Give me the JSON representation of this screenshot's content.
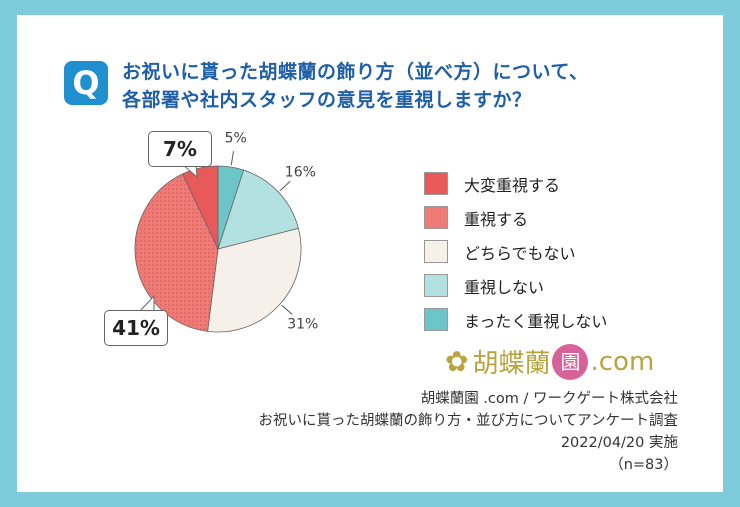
{
  "title": {
    "icon": "Q",
    "lines": [
      "お祝いに貰った胡蝶蘭の飾り方（並べ方）について、",
      "各部署や社内スタッフの意見を重視しますか？"
    ]
  },
  "chart_data": {
    "type": "pie",
    "categories": [
      "大変重視する",
      "重視する",
      "どちらでもない",
      "重視しない",
      "まったく重視しない"
    ],
    "values": [
      7,
      41,
      31,
      16,
      5
    ],
    "labels": [
      "7%",
      "41%",
      "31%",
      "16%",
      "5%"
    ],
    "colors": [
      "#e85a5a",
      "#ee7b76",
      "#f5f1ea",
      "#b3e0e0",
      "#6cc6c8"
    ],
    "legend": "right"
  },
  "logo": {
    "text": "胡蝶蘭",
    "badge": "園",
    "suffix": ".com"
  },
  "credit": [
    "胡蝶蘭園 .com / ワークゲート株式会社",
    "お祝いに貰った胡蝶蘭の飾り方・並び方についてアンケート調査",
    "2022/04/20 実施",
    "（n=83）"
  ]
}
